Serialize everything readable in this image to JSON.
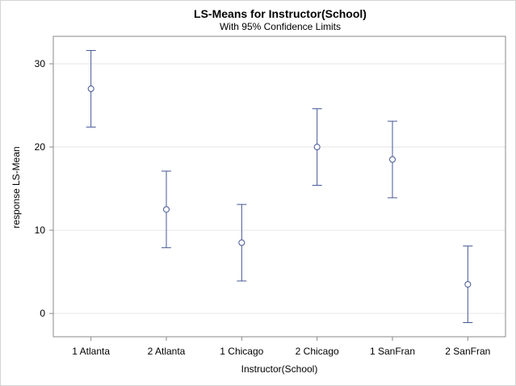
{
  "chart_data": {
    "type": "scatter",
    "title": "LS-Means for Instructor(School)",
    "subtitle": "With 95% Confidence Limits",
    "xlabel": "Instructor(School)",
    "ylabel": "response LS-Mean",
    "categories": [
      "1 Atlanta",
      "2 Atlanta",
      "1 Chicago",
      "2 Chicago",
      "1 SanFran",
      "2 SanFran"
    ],
    "values": [
      27.0,
      12.5,
      8.5,
      20.0,
      18.5,
      3.5
    ],
    "lower": [
      22.4,
      7.9,
      3.9,
      15.4,
      13.9,
      -1.1
    ],
    "upper": [
      31.6,
      17.1,
      13.1,
      24.6,
      23.1,
      8.1
    ],
    "yticks": [
      0,
      10,
      20,
      30
    ],
    "ylim": [
      -2.8,
      33.3
    ],
    "grid": true,
    "colors": {
      "series": "#445694",
      "grid": "#e6e6e6",
      "axis": "#888888"
    }
  }
}
